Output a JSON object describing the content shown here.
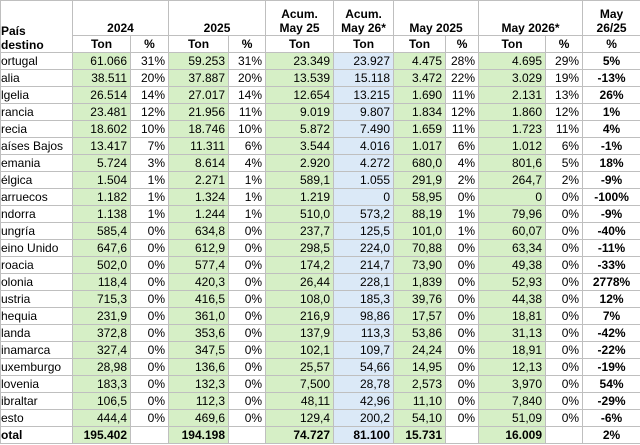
{
  "table": {
    "corner": "País destino",
    "groups": [
      {
        "label": "2024",
        "span": 2
      },
      {
        "label": "2025",
        "span": 2
      },
      {
        "label": "Acum. May 25",
        "span": 1
      },
      {
        "label": "Acum. May 26*",
        "span": 1
      },
      {
        "label": "May 2025",
        "span": 2
      },
      {
        "label": "May 2026*",
        "span": 2
      },
      {
        "label": "May 26/25",
        "span": 1
      }
    ],
    "units": [
      "Ton",
      "%",
      "Ton",
      "%",
      "Ton",
      "Ton",
      "Ton",
      "%",
      "Ton",
      "%",
      "%"
    ],
    "rows": [
      [
        "ortugal",
        "61.066",
        "31%",
        "59.253",
        "31%",
        "23.349",
        "23.927",
        "4.475",
        "28%",
        "4.695",
        "29%",
        "5%"
      ],
      [
        "alia",
        "38.511",
        "20%",
        "37.887",
        "20%",
        "13.539",
        "15.118",
        "3.472",
        "22%",
        "3.029",
        "19%",
        "-13%"
      ],
      [
        "lgelia",
        "26.514",
        "14%",
        "27.017",
        "14%",
        "12.654",
        "13.215",
        "1.690",
        "11%",
        "2.131",
        "13%",
        "26%"
      ],
      [
        "rancia",
        "23.481",
        "12%",
        "21.956",
        "11%",
        "9.019",
        "9.807",
        "1.834",
        "12%",
        "1.860",
        "12%",
        "1%"
      ],
      [
        "recia",
        "18.602",
        "10%",
        "18.746",
        "10%",
        "5.872",
        "7.490",
        "1.659",
        "11%",
        "1.723",
        "11%",
        "4%"
      ],
      [
        "aíses Bajos",
        "13.417",
        "7%",
        "11.311",
        "6%",
        "3.544",
        "4.016",
        "1.017",
        "6%",
        "1.012",
        "6%",
        "-1%"
      ],
      [
        "emania",
        "5.724",
        "3%",
        "8.614",
        "4%",
        "2.920",
        "4.272",
        "680,0",
        "4%",
        "801,6",
        "5%",
        "18%"
      ],
      [
        "élgica",
        "1.504",
        "1%",
        "2.271",
        "1%",
        "589,1",
        "1.055",
        "291,9",
        "2%",
        "264,7",
        "2%",
        "-9%"
      ],
      [
        "arruecos",
        "1.182",
        "1%",
        "1.324",
        "1%",
        "1.219",
        "0",
        "58,95",
        "0%",
        "0",
        "0%",
        "-100%"
      ],
      [
        "ndorra",
        "1.138",
        "1%",
        "1.244",
        "1%",
        "510,0",
        "573,2",
        "88,19",
        "1%",
        "79,96",
        "0%",
        "-9%"
      ],
      [
        "ungría",
        "585,4",
        "0%",
        "634,8",
        "0%",
        "237,7",
        "125,5",
        "101,0",
        "1%",
        "60,07",
        "0%",
        "-40%"
      ],
      [
        "eino Unido",
        "647,6",
        "0%",
        "612,9",
        "0%",
        "298,5",
        "224,0",
        "70,88",
        "0%",
        "63,34",
        "0%",
        "-11%"
      ],
      [
        "roacia",
        "502,0",
        "0%",
        "577,4",
        "0%",
        "174,2",
        "214,7",
        "73,90",
        "0%",
        "49,38",
        "0%",
        "-33%"
      ],
      [
        "olonia",
        "118,4",
        "0%",
        "420,3",
        "0%",
        "26,44",
        "228,1",
        "1,839",
        "0%",
        "52,93",
        "0%",
        "2778%"
      ],
      [
        "ustria",
        "715,3",
        "0%",
        "416,5",
        "0%",
        "108,0",
        "185,3",
        "39,76",
        "0%",
        "44,38",
        "0%",
        "12%"
      ],
      [
        "hequia",
        "231,9",
        "0%",
        "361,0",
        "0%",
        "216,9",
        "98,86",
        "17,57",
        "0%",
        "18,81",
        "0%",
        "7%"
      ],
      [
        "landa",
        "372,8",
        "0%",
        "353,6",
        "0%",
        "137,9",
        "113,3",
        "53,86",
        "0%",
        "31,13",
        "0%",
        "-42%"
      ],
      [
        "inamarca",
        "327,4",
        "0%",
        "347,5",
        "0%",
        "102,1",
        "109,7",
        "24,24",
        "0%",
        "18,91",
        "0%",
        "-22%"
      ],
      [
        "uxemburgo",
        "28,98",
        "0%",
        "136,6",
        "0%",
        "25,57",
        "54,66",
        "14,95",
        "0%",
        "12,13",
        "0%",
        "-19%"
      ],
      [
        "lovenia",
        "183,3",
        "0%",
        "132,3",
        "0%",
        "7,500",
        "28,78",
        "2,573",
        "0%",
        "3,970",
        "0%",
        "54%"
      ],
      [
        "ibraltar",
        "106,5",
        "0%",
        "112,3",
        "0%",
        "48,11",
        "42,96",
        "11,10",
        "0%",
        "7,840",
        "0%",
        "-29%"
      ],
      [
        "esto",
        "444,4",
        "0%",
        "469,6",
        "0%",
        "129,4",
        "200,2",
        "54,10",
        "0%",
        "51,09",
        "0%",
        "-6%"
      ],
      [
        "otal",
        "195.402",
        null,
        "194.198",
        null,
        "74.727",
        "81.100",
        "15.731",
        null,
        "16.009",
        null,
        "2%"
      ]
    ]
  }
}
